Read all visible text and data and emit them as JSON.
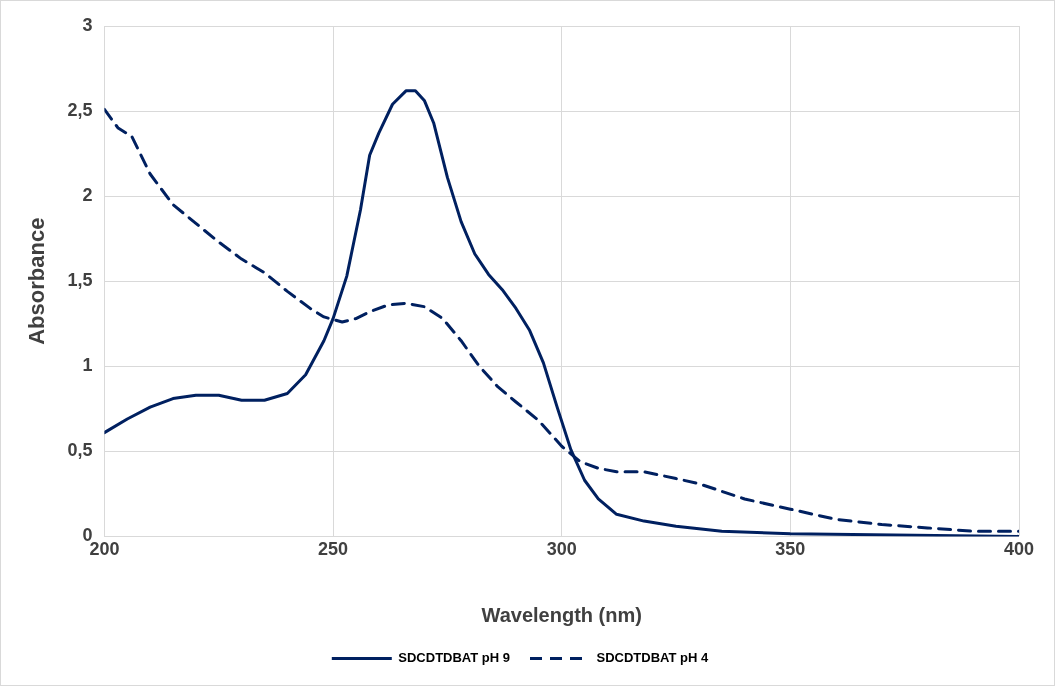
{
  "chart_data": {
    "type": "line",
    "xlabel": "Wavelength (nm)",
    "ylabel": "Absorbance",
    "xlim": [
      200,
      400
    ],
    "xticks": [
      200,
      250,
      300,
      350,
      400
    ],
    "ylim": [
      0,
      3
    ],
    "yticks": [
      0,
      {
        "value": 0.5,
        "label": "0,5"
      },
      1,
      {
        "value": 1.5,
        "label": "1,5"
      },
      2,
      {
        "value": 2.5,
        "label": "2,5"
      },
      3
    ],
    "grid": true,
    "legend": "bottom",
    "marker": "none",
    "series": [
      {
        "name": "SDCDTDBAT pH 9",
        "color": "#002060",
        "line_style": "solid",
        "x": [
          200,
          205,
          210,
          215,
          220,
          225,
          230,
          235,
          240,
          244,
          248,
          250,
          253,
          256,
          258,
          260,
          263,
          266,
          268,
          270,
          272,
          275,
          278,
          281,
          284,
          287,
          290,
          293,
          296,
          299,
          302,
          305,
          308,
          312,
          318,
          325,
          335,
          350,
          400
        ],
        "values": [
          0.61,
          0.69,
          0.76,
          0.81,
          0.83,
          0.83,
          0.8,
          0.8,
          0.84,
          0.95,
          1.15,
          1.28,
          1.53,
          1.92,
          2.24,
          2.37,
          2.54,
          2.62,
          2.62,
          2.56,
          2.43,
          2.11,
          1.85,
          1.66,
          1.54,
          1.45,
          1.34,
          1.21,
          1.02,
          0.76,
          0.51,
          0.33,
          0.22,
          0.13,
          0.09,
          0.06,
          0.03,
          0.015,
          0
        ]
      },
      {
        "name": "SDCDTDBAT pH 4",
        "color": "#002060",
        "line_style": "dashed",
        "x": [
          200,
          203,
          206,
          210,
          215,
          220,
          225,
          230,
          235,
          240,
          245,
          248,
          252,
          255,
          258,
          262,
          266,
          270,
          274,
          278,
          282,
          286,
          290,
          295,
          300,
          304,
          308,
          312,
          318,
          325,
          330,
          340,
          350,
          360,
          370,
          380,
          390,
          400
        ],
        "values": [
          2.51,
          2.4,
          2.35,
          2.13,
          1.95,
          1.84,
          1.73,
          1.63,
          1.55,
          1.44,
          1.34,
          1.29,
          1.26,
          1.28,
          1.32,
          1.36,
          1.37,
          1.35,
          1.28,
          1.15,
          1.0,
          0.88,
          0.79,
          0.68,
          0.53,
          0.44,
          0.4,
          0.38,
          0.38,
          0.34,
          0.31,
          0.22,
          0.16,
          0.1,
          0.07,
          0.05,
          0.03,
          0.03
        ]
      }
    ]
  }
}
